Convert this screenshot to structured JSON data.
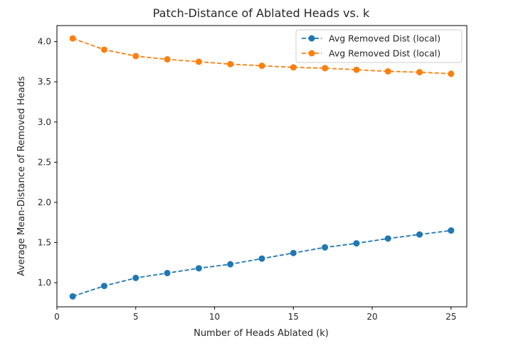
{
  "chart_data": {
    "type": "line",
    "title": "Patch-Distance of Ablated Heads vs. k",
    "xlabel": "Number of Heads Ablated (k)",
    "ylabel": "Average Mean-Distance of Removed Heads",
    "xlim": [
      0,
      26
    ],
    "ylim": [
      0.7,
      4.2
    ],
    "xticks": [
      0,
      5,
      10,
      15,
      20,
      25
    ],
    "yticks": [
      1.0,
      1.5,
      2.0,
      2.5,
      3.0,
      3.5,
      4.0
    ],
    "grid": false,
    "legend_position": "top-right",
    "x": [
      1,
      3,
      5,
      7,
      9,
      11,
      13,
      15,
      17,
      19,
      21,
      23,
      25
    ],
    "series": [
      {
        "name": "Avg Removed Dist (local)",
        "color": "#1f77b4",
        "linestyle": "dashed",
        "marker": "circle",
        "values": [
          0.83,
          0.96,
          1.06,
          1.12,
          1.18,
          1.23,
          1.3,
          1.37,
          1.44,
          1.49,
          1.55,
          1.6,
          1.65
        ]
      },
      {
        "name": "Avg Removed Dist (local)",
        "color": "#ff7f0e",
        "linestyle": "dashed",
        "marker": "circle",
        "values": [
          4.04,
          3.9,
          3.82,
          3.78,
          3.75,
          3.72,
          3.7,
          3.68,
          3.67,
          3.65,
          3.63,
          3.62,
          3.6
        ]
      }
    ]
  }
}
